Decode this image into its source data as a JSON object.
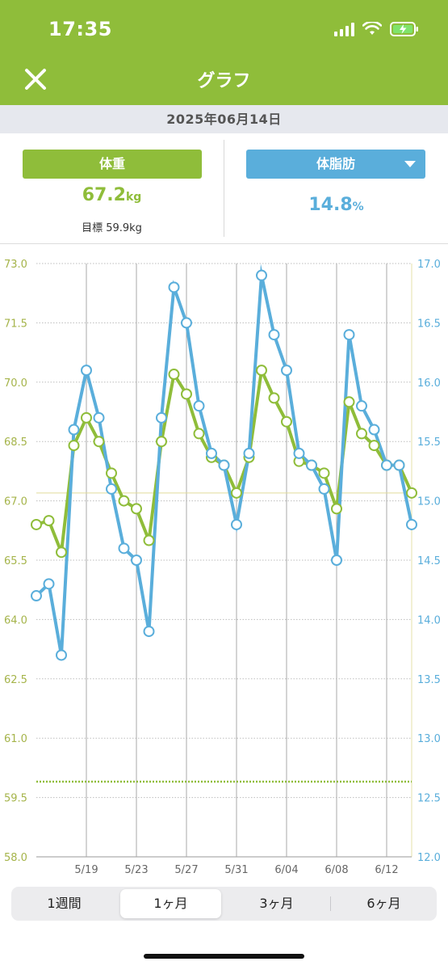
{
  "status": {
    "time": "17:35"
  },
  "header": {
    "title": "グラフ"
  },
  "date": "2025年06月14日",
  "weight": {
    "label": "体重",
    "value": "67.2",
    "unit": "kg",
    "goal": "目標 59.9kg",
    "color": "#8fbd3a"
  },
  "body_fat": {
    "label": "体脂肪",
    "value": "14.8",
    "unit": "%",
    "color": "#5aaedb"
  },
  "periods": [
    "1週間",
    "1ヶ月",
    "3ヶ月",
    "6ヶ月"
  ],
  "active_period": "1ヶ月",
  "chart_data": {
    "type": "line",
    "x_tick_labels": [
      "5/19",
      "5/23",
      "5/27",
      "5/31",
      "6/04",
      "6/08",
      "6/12"
    ],
    "left_axis": {
      "ticks": [
        "73.0",
        "71.5",
        "70.0",
        "68.5",
        "67.0",
        "65.5",
        "64.0",
        "62.5",
        "61.0",
        "59.5",
        "58.0"
      ],
      "ylim": [
        58,
        73
      ]
    },
    "right_axis": {
      "ticks": [
        "17.0",
        "16.5",
        "16.0",
        "15.5",
        "15.0",
        "14.5",
        "14.0",
        "13.5",
        "13.0",
        "12.5",
        "12.0"
      ],
      "ylim": [
        12,
        17
      ]
    },
    "goal_line": 59.9,
    "current_weight_line": 67.2,
    "series": [
      {
        "name": "体重",
        "axis": "left",
        "color": "#8fbd3a",
        "x": [
          "5/15",
          "5/16",
          "5/17",
          "5/18",
          "5/19",
          "5/20",
          "5/21",
          "5/22",
          "5/23",
          "5/24",
          "5/25",
          "5/26",
          "5/27",
          "5/28",
          "5/29",
          "5/30",
          "5/31",
          "6/01",
          "6/02",
          "6/03",
          "6/04",
          "6/05",
          "6/06",
          "6/07",
          "6/08",
          "6/09",
          "6/10",
          "6/11",
          "6/12",
          "6/13",
          "6/14"
        ],
        "values": [
          66.4,
          66.5,
          65.7,
          68.4,
          69.1,
          68.5,
          67.7,
          67.0,
          66.8,
          66.0,
          68.5,
          70.2,
          69.7,
          68.7,
          68.1,
          67.9,
          67.2,
          68.1,
          70.3,
          69.6,
          69.0,
          68.0,
          67.9,
          67.7,
          66.8,
          69.5,
          68.7,
          68.4,
          67.9,
          67.9,
          67.2
        ]
      },
      {
        "name": "体脂肪",
        "axis": "right",
        "color": "#5aaedb",
        "x": [
          "5/15",
          "5/16",
          "5/17",
          "5/18",
          "5/19",
          "5/20",
          "5/21",
          "5/22",
          "5/23",
          "5/24",
          "5/25",
          "5/26",
          "5/27",
          "5/28",
          "5/29",
          "5/30",
          "5/31",
          "6/01",
          "6/02",
          "6/03",
          "6/04",
          "6/05",
          "6/06",
          "6/07",
          "6/08",
          "6/09",
          "6/10",
          "6/11",
          "6/12",
          "6/13",
          "6/14"
        ],
        "values": [
          14.2,
          14.3,
          13.7,
          15.6,
          16.1,
          15.7,
          15.1,
          14.6,
          14.5,
          13.9,
          15.7,
          16.8,
          16.5,
          15.8,
          15.4,
          15.3,
          14.8,
          15.4,
          16.9,
          16.4,
          16.1,
          15.4,
          15.3,
          15.1,
          14.5,
          16.4,
          15.8,
          15.6,
          15.3,
          15.3,
          14.8
        ]
      }
    ]
  }
}
